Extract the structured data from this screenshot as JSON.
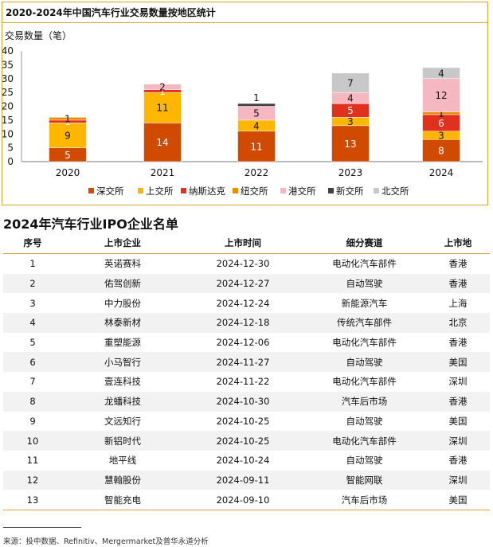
{
  "chart_data": {
    "type": "bar",
    "stacked": true,
    "title": "2020-2024年中国汽车行业交易数量按地区统计",
    "ylabel": "交易数量（笔）",
    "ylim": [
      0,
      40
    ],
    "yticks": [
      0,
      5,
      10,
      15,
      20,
      25,
      30,
      35,
      40
    ],
    "categories": [
      "2020",
      "2021",
      "2022",
      "2023",
      "2024"
    ],
    "series": [
      {
        "name": "深交所",
        "color": "#d04a02",
        "values": [
          5,
          14,
          11,
          13,
          8
        ]
      },
      {
        "name": "上交所",
        "color": "#ffb600",
        "values": [
          9,
          11,
          4,
          3,
          3
        ]
      },
      {
        "name": "纳斯达克",
        "color": "#e0301e",
        "values": [
          1,
          1,
          0,
          5,
          6
        ]
      },
      {
        "name": "纽交所",
        "color": "#eb8c00",
        "values": [
          1,
          0,
          0,
          0,
          1
        ]
      },
      {
        "name": "港交所",
        "color": "#f5b8c0",
        "values": [
          0,
          2,
          5,
          4,
          12
        ]
      },
      {
        "name": "新交所",
        "color": "#404041",
        "values": [
          0,
          0,
          1,
          0,
          0
        ]
      },
      {
        "name": "北交所",
        "color": "#c8c8c8",
        "values": [
          0,
          0,
          0,
          7,
          4
        ]
      }
    ],
    "legend_position": "bottom"
  },
  "table": {
    "title": "2024年汽车行业IPO企业名单",
    "headers": [
      "序号",
      "上市企业",
      "上市时间",
      "细分赛道",
      "上市地"
    ],
    "rows": [
      [
        "1",
        "英诺赛科",
        "2024-12-30",
        "电动化汽车部件",
        "香港"
      ],
      [
        "2",
        "佑驾创新",
        "2024-12-27",
        "自动驾驶",
        "香港"
      ],
      [
        "3",
        "中力股份",
        "2024-12-24",
        "新能源汽车",
        "上海"
      ],
      [
        "4",
        "林泰新材",
        "2024-12-18",
        "传统汽车部件",
        "北京"
      ],
      [
        "5",
        "重塑能源",
        "2024-12-06",
        "电动化汽车部件",
        "香港"
      ],
      [
        "6",
        "小马智行",
        "2024-11-27",
        "自动驾驶",
        "美国"
      ],
      [
        "7",
        "壹连科技",
        "2024-11-22",
        "电动化汽车部件",
        "深圳"
      ],
      [
        "8",
        "龙蟠科技",
        "2024-10-30",
        "汽车后市场",
        "香港"
      ],
      [
        "9",
        "文远知行",
        "2024-10-25",
        "自动驾驶",
        "美国"
      ],
      [
        "10",
        "新铝时代",
        "2024-10-25",
        "电动化汽车部件",
        "深圳"
      ],
      [
        "11",
        "地平线",
        "2024-10-24",
        "自动驾驶",
        "香港"
      ],
      [
        "12",
        "慧翰股份",
        "2024-09-11",
        "智能网联",
        "深圳"
      ],
      [
        "13",
        "智能充电",
        "2024-09-10",
        "汽车后市场",
        "美国"
      ]
    ]
  },
  "source": "来源：投中数据、Refinitiv、Mergermarket及普华永道分析"
}
